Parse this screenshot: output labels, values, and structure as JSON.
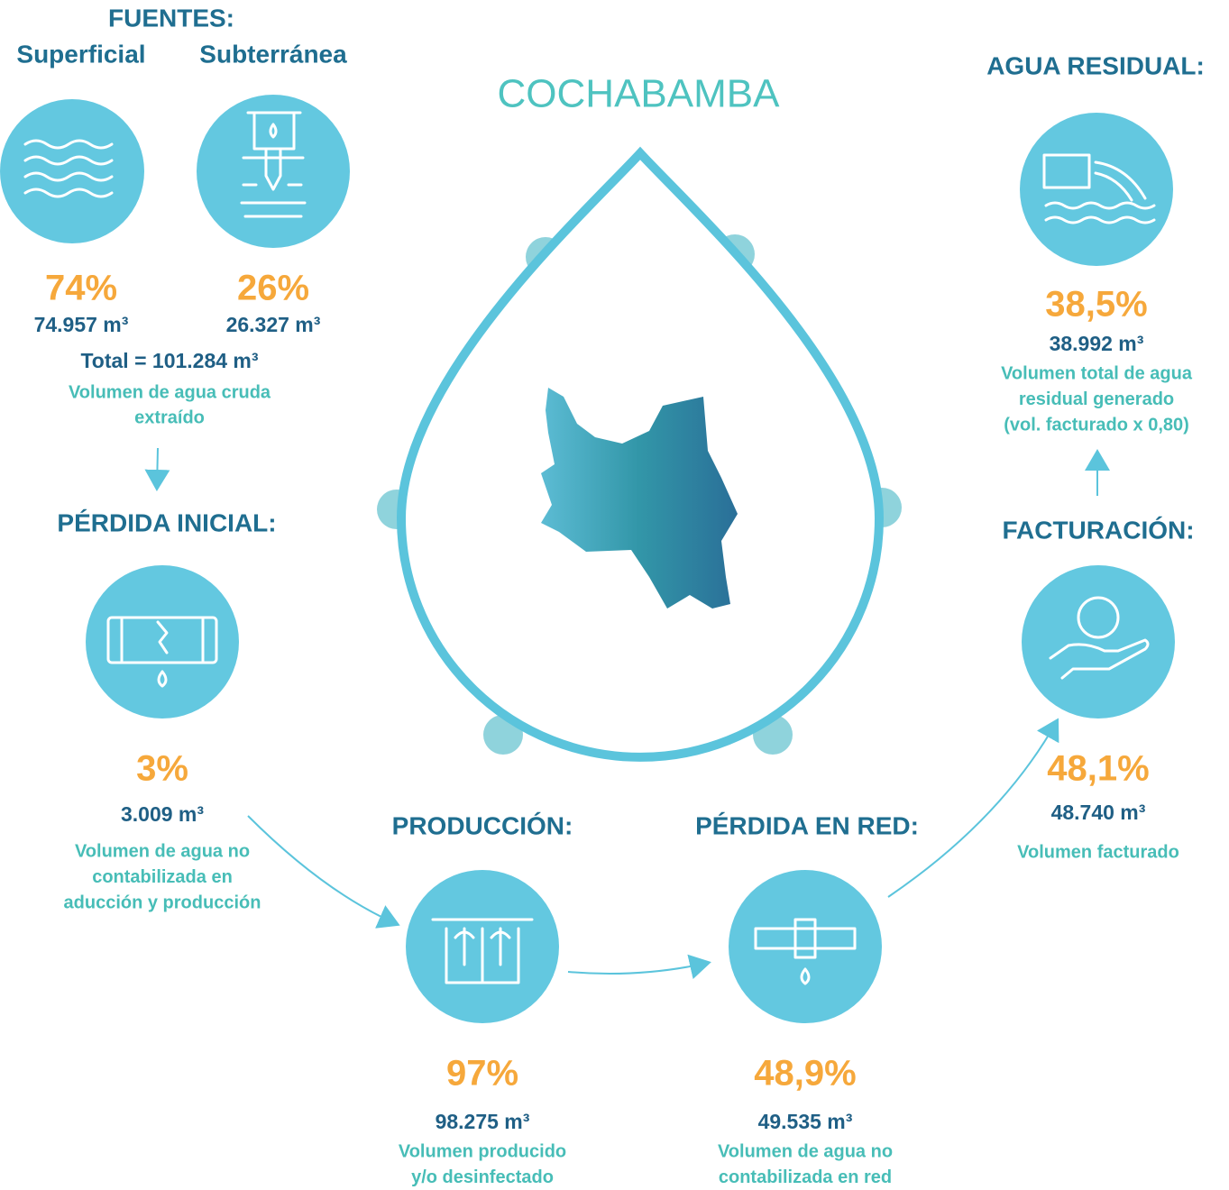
{
  "title": "COCHABAMBA",
  "fuentes": {
    "heading": "FUENTES:",
    "sources": [
      {
        "label": "Superficial",
        "percent": "74%",
        "volume": "74.957 m³"
      },
      {
        "label": "Subterránea",
        "percent": "26%",
        "volume": "26.327 m³"
      }
    ],
    "total": "Total = 101.284 m³",
    "description": [
      "Volumen de agua cruda",
      "extraído"
    ]
  },
  "perdida_inicial": {
    "heading": "PÉRDIDA INICIAL:",
    "percent": "3%",
    "volume": "3.009 m³",
    "description": [
      "Volumen de agua no",
      "contabilizada en",
      "aducción y producción"
    ]
  },
  "produccion": {
    "heading": "PRODUCCIÓN:",
    "percent": "97%",
    "volume": "98.275 m³",
    "description": [
      "Volumen producido",
      "y/o desinfectado"
    ]
  },
  "perdida_red": {
    "heading": "PÉRDIDA EN RED:",
    "percent": "48,9%",
    "volume": "49.535 m³",
    "description": [
      "Volumen de agua no",
      "contabilizada en red"
    ]
  },
  "facturacion": {
    "heading": "FACTURACIÓN:",
    "percent": "48,1%",
    "volume": "48.740 m³",
    "description": [
      "Volumen facturado"
    ]
  },
  "agua_residual": {
    "heading": "AGUA RESIDUAL:",
    "percent": "38,5%",
    "volume": "38.992 m³",
    "description": [
      "Volumen total de agua",
      "residual generado",
      "(vol. facturado x 0,80)"
    ]
  }
}
